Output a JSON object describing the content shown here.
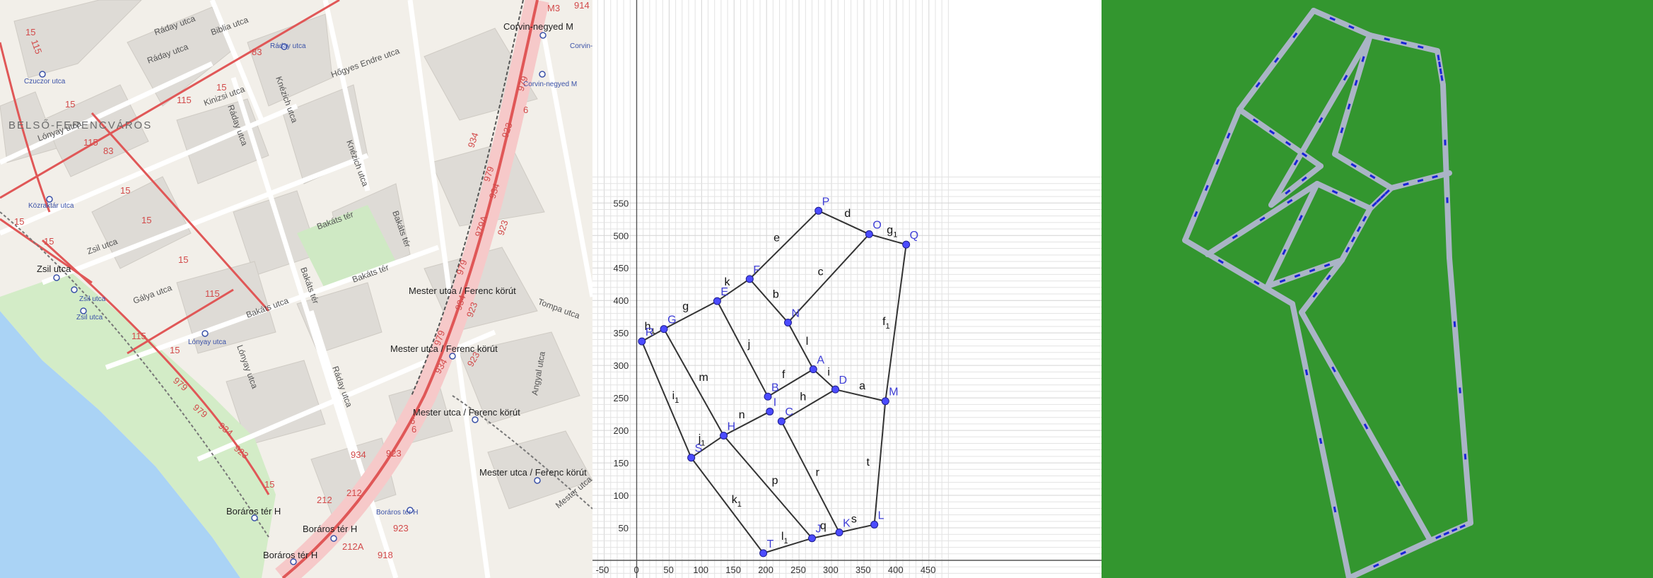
{
  "map": {
    "district": "BELSŐ-FERENCVÁROS",
    "streets": [
      "Ráday utca",
      "Biblia utca",
      "Ráday utca",
      "Knézich utca",
      "Hőgyes Endre utca",
      "Kinizsi utca",
      "Ráday utca",
      "Lónyay utca",
      "Knézich utca",
      "Bakáts tér",
      "Bakáts tér",
      "Bakáts tér",
      "Bakáts tér",
      "Zsil utca",
      "Gálya utca",
      "Bakáts utca",
      "Lónyay utca",
      "Ráday utca",
      "Tompa utca",
      "Angyal utca",
      "Mester utca"
    ],
    "stops": [
      "Corvin-negyed M",
      "Mester utca / Ferenc körút",
      "Mester utca / Ferenc körút",
      "Mester utca / Ferenc körút",
      "Mester utca / Ferenc körút",
      "Boráros tér H",
      "Boráros tér H",
      "Boráros tér H",
      "Zsil utca"
    ],
    "small_stops": [
      "Ráday utca",
      "Czuczor utca",
      "Közraktár utca",
      "Corvin-negyed M",
      "Corvin-",
      "Zsil utca",
      "Zsil utca",
      "Lónyay utca",
      "Boráros tér H"
    ],
    "routes": [
      "15",
      "115",
      "83",
      "15",
      "115",
      "83",
      "15",
      "115",
      "15",
      "15",
      "15",
      "15",
      "115",
      "15",
      "115",
      "15",
      "934",
      "979",
      "923",
      "6",
      "934",
      "979A",
      "923",
      "979",
      "934",
      "923",
      "6",
      "979",
      "923",
      "934",
      "979",
      "923",
      "979",
      "934",
      "6",
      "923",
      "212",
      "212",
      "212A",
      "918",
      "923",
      "914",
      "M3",
      "934",
      "979",
      "15"
    ]
  },
  "geogebra": {
    "x_ticks": [
      "-50",
      "0",
      "50",
      "100",
      "150",
      "200",
      "250",
      "300",
      "350",
      "400",
      "450"
    ],
    "y_ticks": [
      "50",
      "100",
      "150",
      "200",
      "250",
      "300",
      "350",
      "400",
      "450",
      "500",
      "550"
    ],
    "points": [
      {
        "name": "P",
        "x": 280,
        "y": 538
      },
      {
        "name": "O",
        "x": 358,
        "y": 502
      },
      {
        "name": "Q",
        "x": 415,
        "y": 486
      },
      {
        "name": "F",
        "x": 174,
        "y": 433
      },
      {
        "name": "E",
        "x": 124,
        "y": 399
      },
      {
        "name": "N",
        "x": 233,
        "y": 366
      },
      {
        "name": "G",
        "x": 42,
        "y": 356
      },
      {
        "name": "R",
        "x": 8,
        "y": 337
      },
      {
        "name": "A",
        "x": 272,
        "y": 294
      },
      {
        "name": "D",
        "x": 306,
        "y": 263
      },
      {
        "name": "B",
        "x": 202,
        "y": 252
      },
      {
        "name": "M",
        "x": 383,
        "y": 245
      },
      {
        "name": "I",
        "x": 205,
        "y": 229
      },
      {
        "name": "C",
        "x": 223,
        "y": 214
      },
      {
        "name": "H",
        "x": 134,
        "y": 192
      },
      {
        "name": "S",
        "x": 84,
        "y": 158
      },
      {
        "name": "L",
        "x": 366,
        "y": 55
      },
      {
        "name": "K",
        "x": 312,
        "y": 43
      },
      {
        "name": "J",
        "x": 270,
        "y": 34
      },
      {
        "name": "T",
        "x": 195,
        "y": 11
      }
    ],
    "segments": [
      {
        "name": "d",
        "label": "d",
        "sub": "",
        "from": "P",
        "to": "O"
      },
      {
        "name": "g1",
        "label": "g",
        "sub": "1",
        "from": "O",
        "to": "Q"
      },
      {
        "name": "e",
        "label": "e",
        "sub": "",
        "from": "F",
        "to": "P"
      },
      {
        "name": "c",
        "label": "c",
        "sub": "",
        "from": "N",
        "to": "O"
      },
      {
        "name": "f1",
        "label": "f",
        "sub": "1",
        "from": "Q",
        "to": "M"
      },
      {
        "name": "k",
        "label": "k",
        "sub": "",
        "from": "E",
        "to": "F"
      },
      {
        "name": "b",
        "label": "b",
        "sub": "",
        "from": "F",
        "to": "N"
      },
      {
        "name": "g",
        "label": "g",
        "sub": "",
        "from": "G",
        "to": "E"
      },
      {
        "name": "h1",
        "label": "h",
        "sub": "1",
        "from": "R",
        "to": "G"
      },
      {
        "name": "j",
        "label": "j",
        "sub": "",
        "from": "E",
        "to": "B"
      },
      {
        "name": "l",
        "label": "l",
        "sub": "",
        "from": "N",
        "to": "A"
      },
      {
        "name": "f",
        "label": "f",
        "sub": "",
        "from": "B",
        "to": "A"
      },
      {
        "name": "i",
        "label": "i",
        "sub": "",
        "from": "A",
        "to": "D"
      },
      {
        "name": "a",
        "label": "a",
        "sub": "",
        "from": "D",
        "to": "M"
      },
      {
        "name": "h",
        "label": "h",
        "sub": "",
        "from": "C",
        "to": "D"
      },
      {
        "name": "m",
        "label": "m",
        "sub": "",
        "from": "G",
        "to": "H"
      },
      {
        "name": "i1",
        "label": "i",
        "sub": "1",
        "from": "R",
        "to": "S"
      },
      {
        "name": "n",
        "label": "n",
        "sub": "",
        "from": "H",
        "to": "I"
      },
      {
        "name": "j1",
        "label": "j",
        "sub": "1",
        "from": "S",
        "to": "H"
      },
      {
        "name": "t",
        "label": "t",
        "sub": "",
        "from": "M",
        "to": "L"
      },
      {
        "name": "r",
        "label": "r",
        "sub": "",
        "from": "C",
        "to": "K"
      },
      {
        "name": "p",
        "label": "p",
        "sub": "",
        "from": "H",
        "to": "J"
      },
      {
        "name": "k1",
        "label": "k",
        "sub": "1",
        "from": "S",
        "to": "T"
      },
      {
        "name": "s",
        "label": "s",
        "sub": "",
        "from": "K",
        "to": "L"
      },
      {
        "name": "q",
        "label": "q",
        "sub": "",
        "from": "J",
        "to": "K"
      },
      {
        "name": "l1",
        "label": "l",
        "sub": "1",
        "from": "T",
        "to": "J"
      }
    ],
    "colors": {
      "point": "#4b4bff",
      "point_label": "#3f3fd6",
      "segment": "#333333",
      "grid": "#e3e3e3"
    }
  },
  "simulation": {
    "colors": {
      "ground": "#33962f",
      "road": "#aab4c6",
      "marker": "#1a22d9"
    }
  }
}
